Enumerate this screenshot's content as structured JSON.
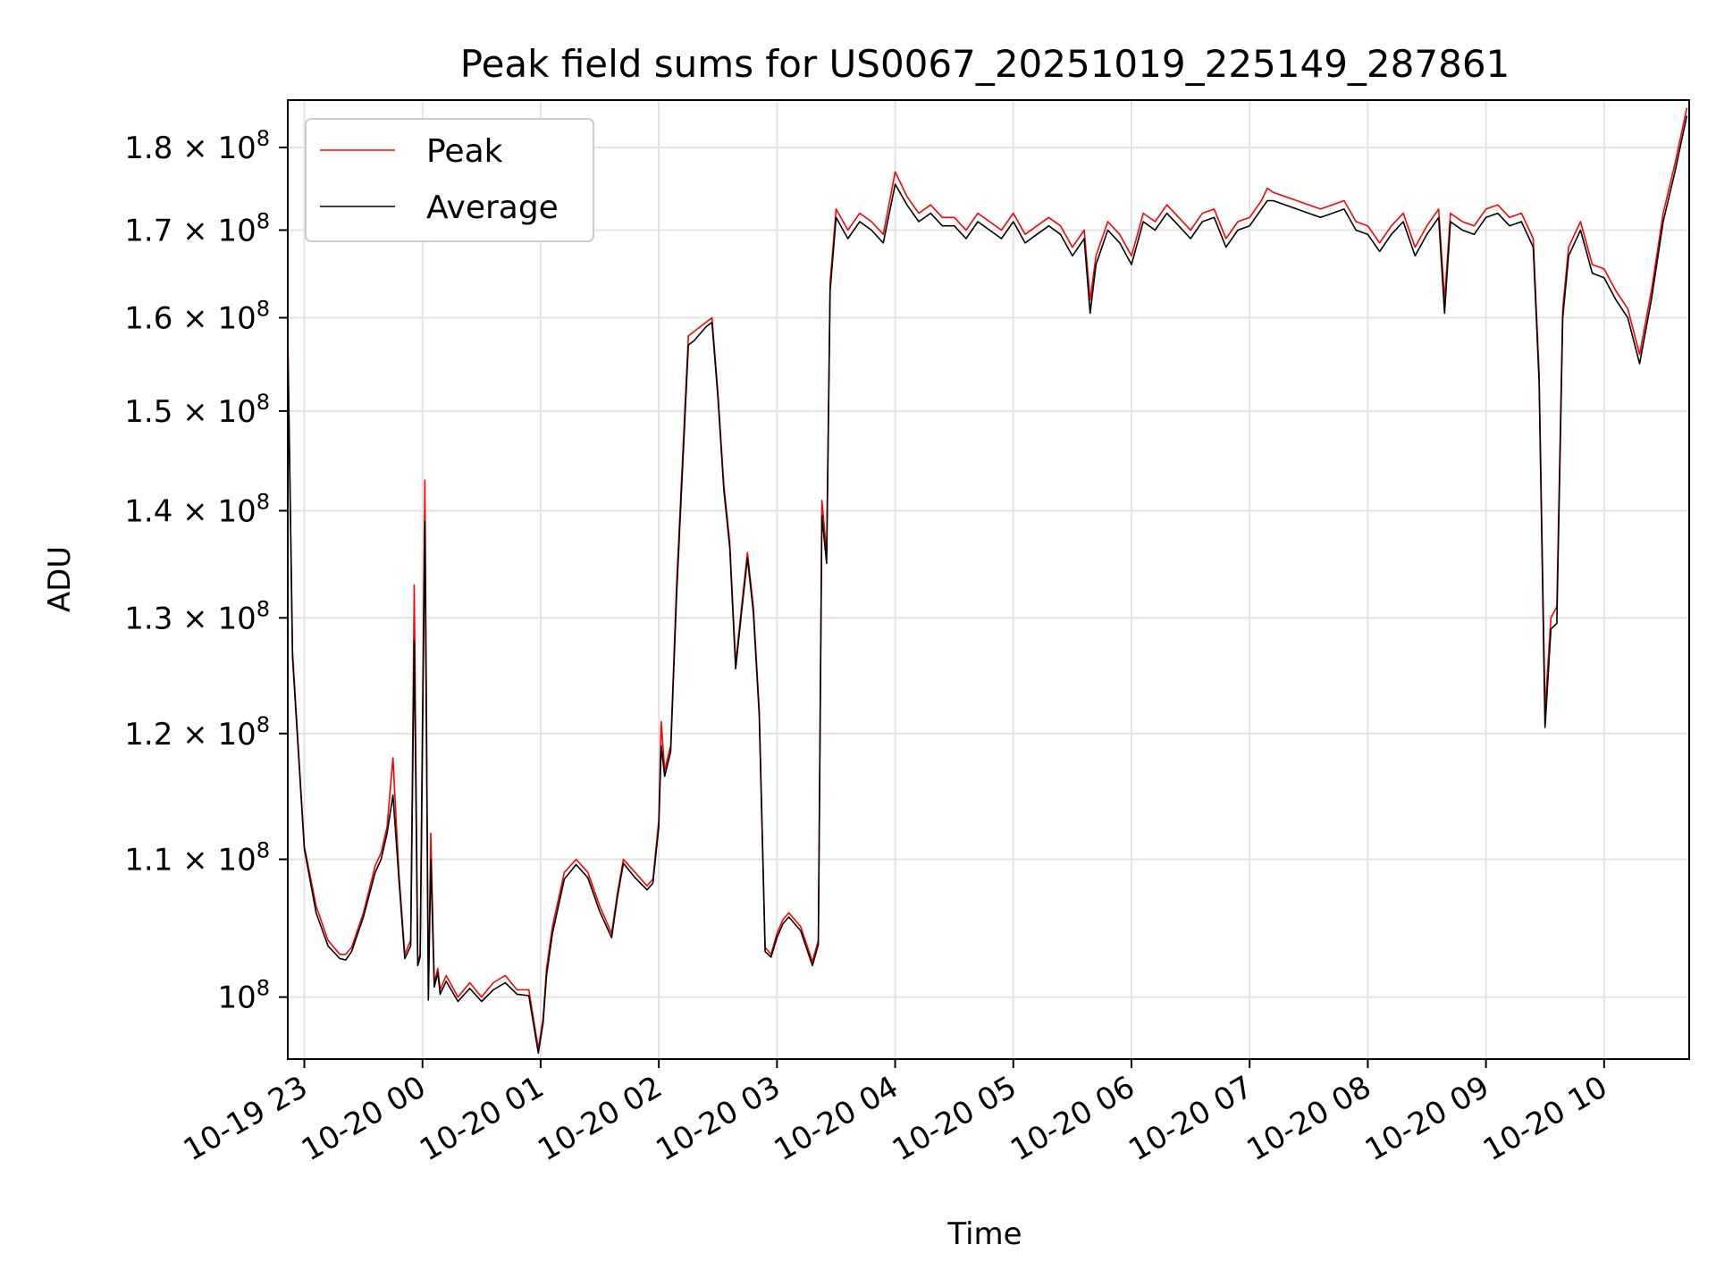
{
  "chart_data": {
    "type": "line",
    "title": "Peak field sums for US0067_20251019_225149_287861",
    "xlabel": "Time",
    "ylabel": "ADU",
    "grid": true,
    "legend": {
      "position": "top-left",
      "entries": [
        "Peak",
        "Average"
      ]
    },
    "xlim": [
      22.86,
      34.72
    ],
    "ylim": [
      95800000,
      186000000
    ],
    "y_scale": "log",
    "x_ticks": [
      {
        "value": 23,
        "label": "10-19 23"
      },
      {
        "value": 24,
        "label": "10-20 00"
      },
      {
        "value": 25,
        "label": "10-20 01"
      },
      {
        "value": 26,
        "label": "10-20 02"
      },
      {
        "value": 27,
        "label": "10-20 03"
      },
      {
        "value": 28,
        "label": "10-20 04"
      },
      {
        "value": 29,
        "label": "10-20 05"
      },
      {
        "value": 30,
        "label": "10-20 06"
      },
      {
        "value": 31,
        "label": "10-20 07"
      },
      {
        "value": 32,
        "label": "10-20 08"
      },
      {
        "value": 33,
        "label": "10-20 09"
      },
      {
        "value": 34,
        "label": "10-20 10"
      }
    ],
    "y_ticks": [
      {
        "value": 100000000,
        "mantissa": "",
        "exp": "8"
      },
      {
        "value": 110000000,
        "mantissa": "1.1",
        "exp": "8"
      },
      {
        "value": 120000000,
        "mantissa": "1.2",
        "exp": "8"
      },
      {
        "value": 130000000,
        "mantissa": "1.3",
        "exp": "8"
      },
      {
        "value": 140000000,
        "mantissa": "1.4",
        "exp": "8"
      },
      {
        "value": 150000000,
        "mantissa": "1.5",
        "exp": "8"
      },
      {
        "value": 160000000,
        "mantissa": "1.6",
        "exp": "8"
      },
      {
        "value": 170000000,
        "mantissa": "1.7",
        "exp": "8"
      },
      {
        "value": 180000000,
        "mantissa": "1.8",
        "exp": "8"
      }
    ],
    "series": [
      {
        "name": "Peak",
        "color": "#ff0000",
        "x": [
          22.86,
          22.9,
          23.0,
          23.1,
          23.2,
          23.3,
          23.35,
          23.4,
          23.5,
          23.6,
          23.65,
          23.7,
          23.75,
          23.8,
          23.85,
          23.9,
          23.93,
          23.96,
          23.98,
          24.02,
          24.05,
          24.07,
          24.1,
          24.13,
          24.15,
          24.2,
          24.3,
          24.4,
          24.5,
          24.6,
          24.7,
          24.8,
          24.9,
          24.98,
          25.02,
          25.05,
          25.1,
          25.2,
          25.3,
          25.4,
          25.5,
          25.6,
          25.65,
          25.7,
          25.8,
          25.9,
          25.95,
          26.0,
          26.02,
          26.05,
          26.1,
          26.15,
          26.2,
          26.25,
          26.3,
          26.4,
          26.45,
          26.5,
          26.55,
          26.6,
          26.65,
          26.7,
          26.75,
          26.8,
          26.85,
          26.9,
          26.95,
          27.0,
          27.05,
          27.1,
          27.2,
          27.3,
          27.35,
          27.38,
          27.42,
          27.45,
          27.5,
          27.6,
          27.7,
          27.8,
          27.9,
          28.0,
          28.1,
          28.2,
          28.3,
          28.4,
          28.5,
          28.6,
          28.7,
          28.8,
          28.9,
          29.0,
          29.1,
          29.2,
          29.3,
          29.4,
          29.5,
          29.6,
          29.65,
          29.7,
          29.8,
          29.9,
          30.0,
          30.1,
          30.2,
          30.3,
          30.4,
          30.5,
          30.6,
          30.7,
          30.8,
          30.9,
          31.0,
          31.1,
          31.15,
          31.2,
          31.3,
          31.4,
          31.5,
          31.6,
          31.7,
          31.8,
          31.9,
          32.0,
          32.1,
          32.2,
          32.3,
          32.4,
          32.5,
          32.6,
          32.65,
          32.7,
          32.8,
          32.9,
          33.0,
          33.1,
          33.2,
          33.3,
          33.4,
          33.45,
          33.5,
          33.55,
          33.6,
          33.65,
          33.7,
          33.8,
          33.9,
          34.0,
          34.1,
          34.2,
          34.3,
          34.4,
          34.5,
          34.6,
          34.7
        ],
        "y": [
          158000000,
          127000000,
          111000000,
          106500000,
          104000000,
          103000000,
          103000000,
          103500000,
          106000000,
          109500000,
          110500000,
          112500000,
          118000000,
          109000000,
          103000000,
          104000000,
          133000000,
          102500000,
          103000000,
          143000000,
          100000000,
          112000000,
          101000000,
          102000000,
          100500000,
          101500000,
          100000000,
          101000000,
          100000000,
          101000000,
          101500000,
          100500000,
          100500000,
          96500000,
          98500000,
          102000000,
          105000000,
          109000000,
          110000000,
          109000000,
          106500000,
          104500000,
          107500000,
          110000000,
          109000000,
          108000000,
          108500000,
          113000000,
          121000000,
          117000000,
          119000000,
          133000000,
          145000000,
          158000000,
          158500000,
          159500000,
          160000000,
          152000000,
          142500000,
          137000000,
          126000000,
          131000000,
          136000000,
          131000000,
          122000000,
          103500000,
          103000000,
          104500000,
          105500000,
          106000000,
          105000000,
          102500000,
          104000000,
          141000000,
          136000000,
          164000000,
          172500000,
          170000000,
          172000000,
          171000000,
          169500000,
          177000000,
          174000000,
          172000000,
          173000000,
          171500000,
          171500000,
          170000000,
          172000000,
          171000000,
          170000000,
          172000000,
          169500000,
          170500000,
          171500000,
          170500000,
          168000000,
          170000000,
          162000000,
          167000000,
          171000000,
          169500000,
          167000000,
          172000000,
          171000000,
          173000000,
          171500000,
          170000000,
          172000000,
          172500000,
          169000000,
          171000000,
          171500000,
          173500000,
          175000000,
          174500000,
          174000000,
          173500000,
          173000000,
          172500000,
          173000000,
          173500000,
          171000000,
          170500000,
          168500000,
          170500000,
          172000000,
          168000000,
          170500000,
          172500000,
          162000000,
          172000000,
          171000000,
          170500000,
          172500000,
          173000000,
          171500000,
          172000000,
          169000000,
          154000000,
          122000000,
          130000000,
          131000000,
          161000000,
          168000000,
          171000000,
          166000000,
          165500000,
          163000000,
          161000000,
          156000000,
          163000000,
          172000000,
          178000000,
          185000000
        ]
      },
      {
        "name": "Average",
        "color": "#000000",
        "x": [
          22.86,
          22.9,
          23.0,
          23.1,
          23.2,
          23.3,
          23.35,
          23.4,
          23.5,
          23.6,
          23.65,
          23.7,
          23.75,
          23.8,
          23.85,
          23.9,
          23.93,
          23.96,
          23.98,
          24.02,
          24.05,
          24.07,
          24.1,
          24.13,
          24.15,
          24.2,
          24.3,
          24.4,
          24.5,
          24.6,
          24.7,
          24.8,
          24.9,
          24.98,
          25.02,
          25.05,
          25.1,
          25.2,
          25.3,
          25.4,
          25.5,
          25.6,
          25.65,
          25.7,
          25.8,
          25.9,
          25.95,
          26.0,
          26.02,
          26.05,
          26.1,
          26.15,
          26.2,
          26.25,
          26.3,
          26.4,
          26.45,
          26.5,
          26.55,
          26.6,
          26.65,
          26.7,
          26.75,
          26.8,
          26.85,
          26.9,
          26.95,
          27.0,
          27.05,
          27.1,
          27.2,
          27.3,
          27.35,
          27.38,
          27.42,
          27.45,
          27.5,
          27.6,
          27.7,
          27.8,
          27.9,
          28.0,
          28.1,
          28.2,
          28.3,
          28.4,
          28.5,
          28.6,
          28.7,
          28.8,
          28.9,
          29.0,
          29.1,
          29.2,
          29.3,
          29.4,
          29.5,
          29.6,
          29.65,
          29.7,
          29.8,
          29.9,
          30.0,
          30.1,
          30.2,
          30.3,
          30.4,
          30.5,
          30.6,
          30.7,
          30.8,
          30.9,
          31.0,
          31.1,
          31.15,
          31.2,
          31.3,
          31.4,
          31.5,
          31.6,
          31.7,
          31.8,
          31.9,
          32.0,
          32.1,
          32.2,
          32.3,
          32.4,
          32.5,
          32.6,
          32.65,
          32.7,
          32.8,
          32.9,
          33.0,
          33.1,
          33.2,
          33.3,
          33.4,
          33.45,
          33.5,
          33.55,
          33.6,
          33.65,
          33.7,
          33.8,
          33.9,
          34.0,
          34.1,
          34.2,
          34.3,
          34.4,
          34.5,
          34.6,
          34.7
        ],
        "y": [
          157500000,
          126500000,
          110800000,
          106000000,
          103600000,
          102700000,
          102600000,
          103200000,
          105700000,
          109000000,
          110000000,
          112000000,
          115000000,
          108500000,
          102700000,
          103600000,
          128000000,
          102200000,
          102800000,
          139000000,
          99800000,
          110000000,
          100700000,
          101700000,
          100200000,
          101100000,
          99700000,
          100600000,
          99700000,
          100500000,
          101000000,
          100200000,
          100100000,
          96200000,
          98200000,
          101500000,
          104500000,
          108500000,
          109600000,
          108600000,
          106100000,
          104200000,
          107200000,
          109700000,
          108600000,
          107700000,
          108200000,
          112500000,
          119000000,
          116500000,
          118500000,
          132000000,
          144000000,
          157000000,
          157500000,
          159000000,
          159500000,
          151500000,
          142000000,
          136500000,
          125500000,
          130500000,
          135500000,
          130500000,
          121500000,
          103200000,
          102800000,
          104200000,
          105200000,
          105700000,
          104700000,
          102200000,
          103700000,
          139500000,
          135000000,
          163000000,
          171500000,
          169000000,
          171000000,
          170000000,
          168500000,
          175500000,
          173000000,
          171000000,
          172000000,
          170500000,
          170500000,
          169000000,
          171000000,
          170000000,
          169000000,
          171000000,
          168500000,
          169500000,
          170500000,
          169500000,
          167000000,
          169000000,
          160500000,
          166000000,
          170000000,
          168500000,
          166000000,
          171000000,
          170000000,
          172000000,
          170500000,
          169000000,
          171000000,
          171500000,
          168000000,
          170000000,
          170500000,
          172500000,
          173500000,
          173500000,
          173000000,
          172500000,
          172000000,
          171500000,
          172000000,
          172500000,
          170000000,
          169500000,
          167500000,
          169500000,
          171000000,
          167000000,
          169500000,
          171500000,
          160500000,
          171000000,
          170000000,
          169500000,
          171500000,
          172000000,
          170500000,
          171000000,
          168000000,
          153000000,
          120500000,
          129000000,
          129500000,
          160000000,
          167000000,
          170000000,
          165000000,
          164500000,
          162000000,
          160000000,
          155000000,
          162000000,
          171000000,
          177000000,
          184000000
        ]
      }
    ]
  }
}
